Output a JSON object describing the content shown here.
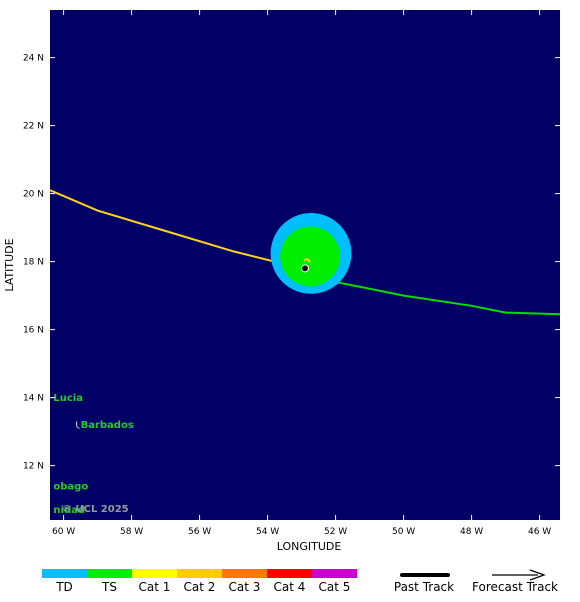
{
  "map": {
    "x_axis_label": "LONGITUDE",
    "y_axis_label": "LATITUDE",
    "lon_ticks": [
      "60 W",
      "58 W",
      "56 W",
      "54 W",
      "52 W",
      "50 W",
      "48 W",
      "46 W"
    ],
    "lat_ticks": [
      "24 N",
      "22 N",
      "20 N",
      "18 N",
      "16 N",
      "14 N",
      "12 N"
    ],
    "lon_range_west": [
      60.4,
      45.4
    ],
    "lat_range": [
      10.4,
      25.4
    ],
    "background_color": "#000066",
    "copyright": "© UCL 2025",
    "places": [
      {
        "name": "Lucia",
        "lon_w": 60.3,
        "lat": 13.9
      },
      {
        "name": "Barbados",
        "lon_w": 59.5,
        "lat": 13.1,
        "marker": true
      },
      {
        "name": "obago",
        "lon_w": 60.3,
        "lat": 11.3
      },
      {
        "name": "nidad",
        "lon_w": 60.3,
        "lat": 10.6
      }
    ],
    "storm": {
      "center_lon_w": 52.9,
      "center_lat": 17.8,
      "wind_radius_ts_deg": 1.0,
      "wind_radius_td_deg": 1.25,
      "ts_color": "#00ee00",
      "td_color": "#00bfff"
    },
    "past_track": {
      "color": "#ffd21f",
      "points": [
        [
          60.4,
          20.1
        ],
        [
          59.0,
          19.5
        ],
        [
          57.0,
          18.9
        ],
        [
          55.0,
          18.3
        ],
        [
          53.0,
          17.8
        ]
      ]
    },
    "forecast_track": {
      "color": "#00dd00",
      "points": [
        [
          53.0,
          17.8
        ],
        [
          52.0,
          17.4
        ],
        [
          50.0,
          17.0
        ],
        [
          48.0,
          16.7
        ],
        [
          47.0,
          16.5
        ],
        [
          45.4,
          16.45
        ]
      ]
    }
  },
  "legend": {
    "categories": [
      {
        "label": "TD",
        "color": "#00bfff"
      },
      {
        "label": "TS",
        "color": "#00ee00"
      },
      {
        "label": "Cat 1",
        "color": "#ffff00"
      },
      {
        "label": "Cat 2",
        "color": "#ffcc00"
      },
      {
        "label": "Cat 3",
        "color": "#ff7700"
      },
      {
        "label": "Cat 4",
        "color": "#ff0000"
      },
      {
        "label": "Cat 5",
        "color": "#cc00cc"
      }
    ],
    "past_track_label": "Past Track",
    "forecast_track_label": "Forecast Track"
  }
}
